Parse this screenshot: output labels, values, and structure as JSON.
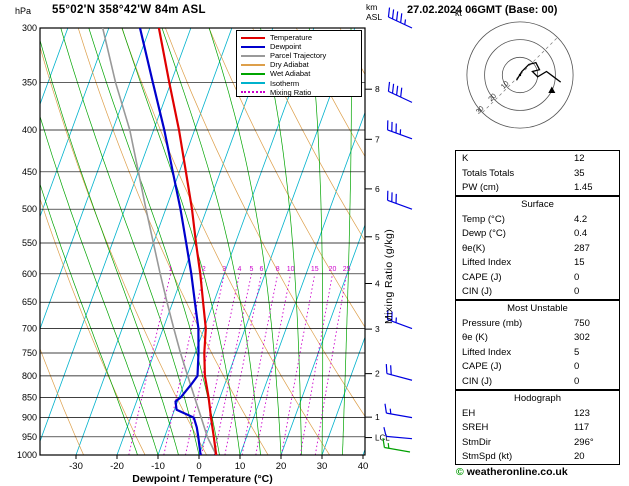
{
  "header": {
    "pressure_unit": "hPa",
    "station": "55°02'N 358°42'W 84m ASL",
    "altitude_unit_lines": [
      "km",
      "ASL"
    ],
    "datetime": "27.02.2024 06GMT (Base: 00)"
  },
  "legend": [
    {
      "label": "Temperature",
      "color": "#e00000",
      "dash": false
    },
    {
      "label": "Dewpoint",
      "color": "#0000cc",
      "dash": false
    },
    {
      "label": "Parcel Trajectory",
      "color": "#999999",
      "dash": false
    },
    {
      "label": "Dry Adiabat",
      "color": "#dd9f4a",
      "dash": false
    },
    {
      "label": "Wet Adiabat",
      "color": "#00a400",
      "dash": false
    },
    {
      "label": "Isotherm",
      "color": "#00b2cc",
      "dash": false
    },
    {
      "label": "Mixing Ratio",
      "color": "#cc00cc",
      "dash": true
    }
  ],
  "chart_data": {
    "type": "line",
    "subtype": "skew-t-log-p-sounding",
    "title": "Skew-T log-P sounding 55°02'N 358°42'W 84m ASL 27.02.2024 06GMT",
    "x_axis": {
      "label": "Dewpoint / Temperature (°C)",
      "ticks": [
        -30,
        -20,
        -10,
        0,
        10,
        20,
        30,
        40
      ],
      "range": [
        -40,
        40
      ]
    },
    "y_axis": {
      "unit": "hPa",
      "scale": "log",
      "ticks": [
        300,
        350,
        400,
        450,
        500,
        550,
        600,
        650,
        700,
        750,
        800,
        850,
        900,
        950,
        1000
      ],
      "range": [
        300,
        1000
      ]
    },
    "altitude_axis": {
      "unit": "km ASL",
      "ticks": [
        {
          "km": 8,
          "hpa": 356.5
        },
        {
          "km": 7,
          "hpa": 410.6
        },
        {
          "km": 6,
          "hpa": 472.2
        },
        {
          "km": 5,
          "hpa": 540.5
        },
        {
          "km": 4,
          "hpa": 616.6
        },
        {
          "km": 3,
          "hpa": 701.2
        },
        {
          "km": 2,
          "hpa": 795.0
        },
        {
          "km": 1,
          "hpa": 898.8
        }
      ],
      "lcl": {
        "label": "LCL",
        "hpa": 952
      }
    },
    "mixing_ratio_lines": {
      "label": "Mixing Ratio (g/kg)",
      "values": [
        1,
        2,
        3,
        4,
        5,
        6,
        8,
        10,
        15,
        20,
        25
      ],
      "top_hpa": 600
    },
    "background_lines": {
      "isotherm": {
        "color": "#00b2cc",
        "step_c": 10
      },
      "dry_adiabat": {
        "color": "#dd9f4a",
        "step_k": 15
      },
      "wet_adiabat": {
        "color": "#00a400",
        "step_c": 5
      },
      "mixing_ratio": {
        "color": "#cc00cc"
      }
    },
    "series": [
      {
        "name": "Parcel Trajectory",
        "color": "#999999",
        "width": 1.6,
        "points": [
          [
            1000,
            4.2
          ],
          [
            950,
            0.4
          ],
          [
            900,
            -2.8
          ],
          [
            850,
            -6.2
          ],
          [
            800,
            -9.8
          ],
          [
            750,
            -13.6
          ],
          [
            700,
            -17.4
          ],
          [
            650,
            -21.4
          ],
          [
            600,
            -25.6
          ],
          [
            550,
            -30.0
          ],
          [
            500,
            -34.8
          ],
          [
            450,
            -40.0
          ],
          [
            400,
            -45.8
          ],
          [
            350,
            -53.5
          ],
          [
            300,
            -61.5
          ]
        ]
      },
      {
        "name": "Dewpoint",
        "color": "#0000cc",
        "width": 2.2,
        "points": [
          [
            1000,
            0.4
          ],
          [
            950,
            -1.8
          ],
          [
            925,
            -3.0
          ],
          [
            900,
            -4.6
          ],
          [
            880,
            -9.5
          ],
          [
            860,
            -10.5
          ],
          [
            850,
            -9.6
          ],
          [
            820,
            -8.2
          ],
          [
            800,
            -7.4
          ],
          [
            750,
            -9.2
          ],
          [
            700,
            -11.4
          ],
          [
            650,
            -14.6
          ],
          [
            600,
            -18.0
          ],
          [
            550,
            -22.0
          ],
          [
            500,
            -26.4
          ],
          [
            450,
            -31.6
          ],
          [
            400,
            -37.4
          ],
          [
            350,
            -44.4
          ],
          [
            300,
            -52.4
          ]
        ]
      },
      {
        "name": "Temperature",
        "color": "#e00000",
        "width": 2.2,
        "points": [
          [
            1000,
            4.2
          ],
          [
            950,
            2.0
          ],
          [
            925,
            0.8
          ],
          [
            900,
            -0.4
          ],
          [
            850,
            -2.8
          ],
          [
            800,
            -5.6
          ],
          [
            750,
            -7.8
          ],
          [
            700,
            -9.6
          ],
          [
            650,
            -12.6
          ],
          [
            600,
            -15.8
          ],
          [
            550,
            -19.6
          ],
          [
            500,
            -23.6
          ],
          [
            450,
            -28.4
          ],
          [
            400,
            -33.8
          ],
          [
            350,
            -40.4
          ],
          [
            300,
            -47.8
          ]
        ]
      }
    ],
    "wind_barbs": {
      "color": "#0000e0",
      "surface_color": "#00a000",
      "barbs": [
        {
          "hpa": 300,
          "kt": 45,
          "dir": 295
        },
        {
          "hpa": 370,
          "kt": 40,
          "dir": 295
        },
        {
          "hpa": 410,
          "kt": 35,
          "dir": 290
        },
        {
          "hpa": 500,
          "kt": 30,
          "dir": 290
        },
        {
          "hpa": 700,
          "kt": 25,
          "dir": 290
        },
        {
          "hpa": 810,
          "kt": 20,
          "dir": 285
        },
        {
          "hpa": 900,
          "kt": 15,
          "dir": 280
        },
        {
          "hpa": 955,
          "kt": 10,
          "dir": 275
        }
      ],
      "surface_barb": {
        "hpa": 1000,
        "kt": 15,
        "dir": 280
      }
    }
  },
  "hodograph": {
    "unit": "kt",
    "rings_kt": [
      10,
      20,
      30
    ],
    "trace_uv_kt": [
      [
        -2,
        -3
      ],
      [
        1,
        2
      ],
      [
        5,
        6
      ],
      [
        9,
        7
      ],
      [
        11,
        3
      ],
      [
        7,
        2
      ],
      [
        10,
        -1
      ],
      [
        15,
        2
      ],
      [
        19,
        -1
      ],
      [
        23,
        -4
      ]
    ],
    "storm_motion": {
      "dir_deg": 296,
      "speed_kt": 20
    }
  },
  "stats": {
    "indices": {
      "rows": [
        [
          "K",
          "12"
        ],
        [
          "Totals Totals",
          "35"
        ],
        [
          "PW (cm)",
          "1.45"
        ]
      ]
    },
    "surface": {
      "title": "Surface",
      "rows": [
        [
          "Temp (°C)",
          "4.2"
        ],
        [
          "Dewp (°C)",
          "0.4"
        ],
        [
          "θe(K)",
          "287"
        ],
        [
          "Lifted Index",
          "15"
        ],
        [
          "CAPE (J)",
          "0"
        ],
        [
          "CIN (J)",
          "0"
        ]
      ]
    },
    "most_unstable": {
      "title": "Most Unstable",
      "rows": [
        [
          "Pressure (mb)",
          "750"
        ],
        [
          "θe (K)",
          "302"
        ],
        [
          "Lifted Index",
          "5"
        ],
        [
          "CAPE (J)",
          "0"
        ],
        [
          "CIN (J)",
          "0"
        ]
      ]
    },
    "hodograph_stats": {
      "title": "Hodograph",
      "rows": [
        [
          "EH",
          "123"
        ],
        [
          "SREH",
          "117"
        ],
        [
          "StmDir",
          "296°"
        ],
        [
          "StmSpd (kt)",
          "20"
        ]
      ]
    }
  },
  "footer": {
    "symbol": "©",
    "text": "weatheronline.co.uk"
  }
}
